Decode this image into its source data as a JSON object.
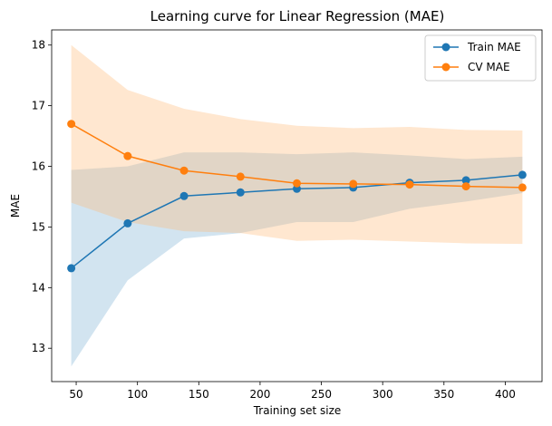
{
  "chart_data": {
    "type": "line",
    "title": "Learning curve for Linear Regression (MAE)",
    "xlabel": "Training set size",
    "ylabel": "MAE",
    "xlim": [
      30,
      430
    ],
    "ylim": [
      12.45,
      18.25
    ],
    "xticks": [
      50,
      100,
      150,
      200,
      250,
      300,
      350,
      400
    ],
    "yticks": [
      13,
      14,
      15,
      16,
      17,
      18
    ],
    "grid": false,
    "legend_position": "upper right",
    "x": [
      46,
      92,
      138,
      184,
      230,
      276,
      322,
      368,
      414
    ],
    "series": [
      {
        "name": "Train MAE",
        "color": "#1f77b4",
        "band_color": "#1f77b4",
        "values": [
          14.32,
          15.06,
          15.51,
          15.57,
          15.63,
          15.65,
          15.73,
          15.77,
          15.86
        ],
        "lower": [
          12.7,
          14.12,
          14.81,
          14.9,
          15.08,
          15.08,
          15.3,
          15.42,
          15.56
        ],
        "upper": [
          15.94,
          16.0,
          16.23,
          16.23,
          16.2,
          16.23,
          16.18,
          16.12,
          16.16
        ]
      },
      {
        "name": "CV MAE",
        "color": "#ff7f0e",
        "band_color": "#ffbb78",
        "values": [
          16.7,
          16.17,
          15.93,
          15.83,
          15.72,
          15.71,
          15.7,
          15.67,
          15.65
        ],
        "lower": [
          15.4,
          15.08,
          14.93,
          14.9,
          14.77,
          14.79,
          14.76,
          14.73,
          14.72
        ],
        "upper": [
          18.0,
          17.26,
          16.95,
          16.78,
          16.67,
          16.63,
          16.65,
          16.6,
          16.59
        ]
      }
    ]
  }
}
